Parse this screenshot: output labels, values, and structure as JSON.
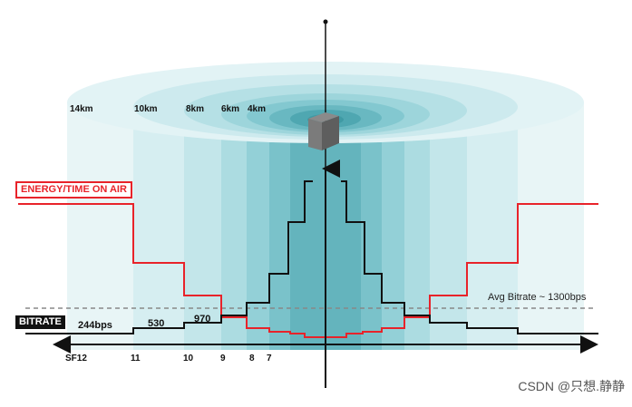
{
  "labels": {
    "energy": "ENERGY/TIME ON AIR",
    "bitrate": "BITRATE",
    "avg_bitrate": "Avg Bitrate ~ 1300bps"
  },
  "distances": [
    "14km",
    "10km",
    "8km",
    "6km",
    "4km"
  ],
  "bitrates": [
    "244bps",
    "530",
    "970"
  ],
  "spreading_factors": [
    "SF12",
    "11",
    "10",
    "9",
    "8",
    "7"
  ],
  "watermark": "CSDN @只想.静静",
  "colors": {
    "energy_line": "#e8232a",
    "bitrate_line": "#111111",
    "ring_light": "#dff1f3",
    "ring_dark": "#3f9aa4",
    "avg_line": "#888888"
  },
  "icons": {
    "gateway": "gateway-tower-icon",
    "axis": "double-arrow-icon"
  }
}
